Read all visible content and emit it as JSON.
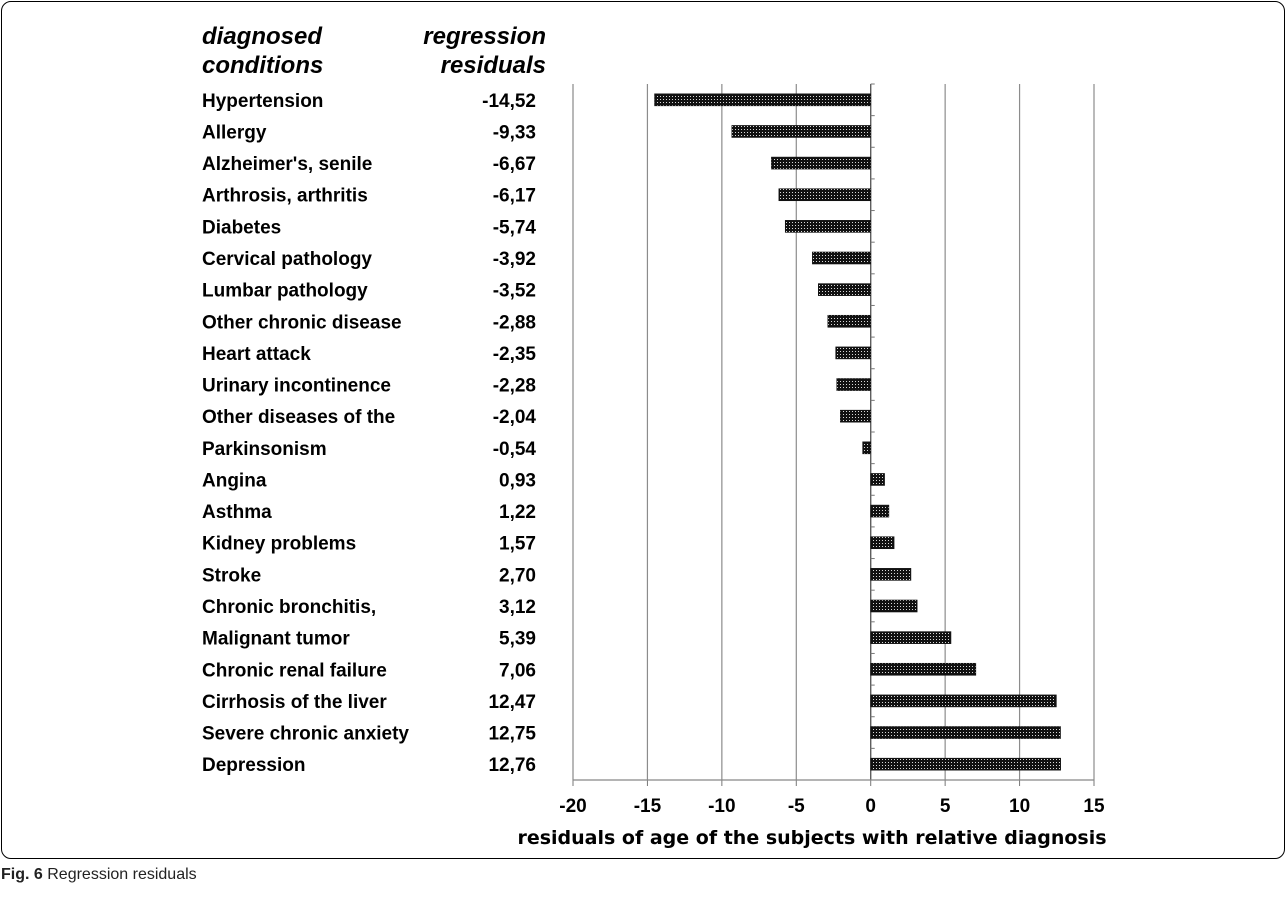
{
  "caption": {
    "label": "Fig. 6",
    "text": "Regression residuals"
  },
  "chart_data": {
    "type": "bar",
    "orientation": "horizontal",
    "title": "",
    "column_headers": {
      "conditions": [
        "diagnosed",
        "conditions"
      ],
      "residuals": [
        "regression",
        "residuals"
      ]
    },
    "categories": [
      "Hypertension",
      "Allergy",
      "Alzheimer's, senile",
      "Arthrosis, arthritis",
      "Diabetes",
      "Cervical pathology",
      "Lumbar pathology",
      "Other chronic disease",
      "Heart attack",
      "Urinary incontinence",
      "Other diseases of the",
      "Parkinsonism",
      "Angina",
      "Asthma",
      "Kidney problems",
      "Stroke",
      "Chronic bronchitis,",
      "Malignant tumor",
      "Chronic renal failure",
      "Cirrhosis of the liver",
      "Severe chronic anxiety",
      "Depression"
    ],
    "value_labels": [
      "-14,52",
      "-9,33",
      "-6,67",
      "-6,17",
      "-5,74",
      "-3,92",
      "-3,52",
      "-2,88",
      "-2,35",
      "-2,28",
      "-2,04",
      "-0,54",
      "0,93",
      "1,22",
      "1,57",
      "2,70",
      "3,12",
      "5,39",
      "7,06",
      "12,47",
      "12,75",
      "12,76"
    ],
    "values": [
      -14.52,
      -9.33,
      -6.67,
      -6.17,
      -5.74,
      -3.92,
      -3.52,
      -2.88,
      -2.35,
      -2.28,
      -2.04,
      -0.54,
      0.93,
      1.22,
      1.57,
      2.7,
      3.12,
      5.39,
      7.06,
      12.47,
      12.75,
      12.76
    ],
    "xlabel": "residuals of age of the subjects with relative diagnosis",
    "xlim": [
      -20,
      15
    ],
    "xticks": [
      "-20",
      "-15",
      "-10",
      "-5",
      "0",
      "5",
      "10",
      "15"
    ],
    "grid": true,
    "bar_pattern": "dotted-black"
  }
}
